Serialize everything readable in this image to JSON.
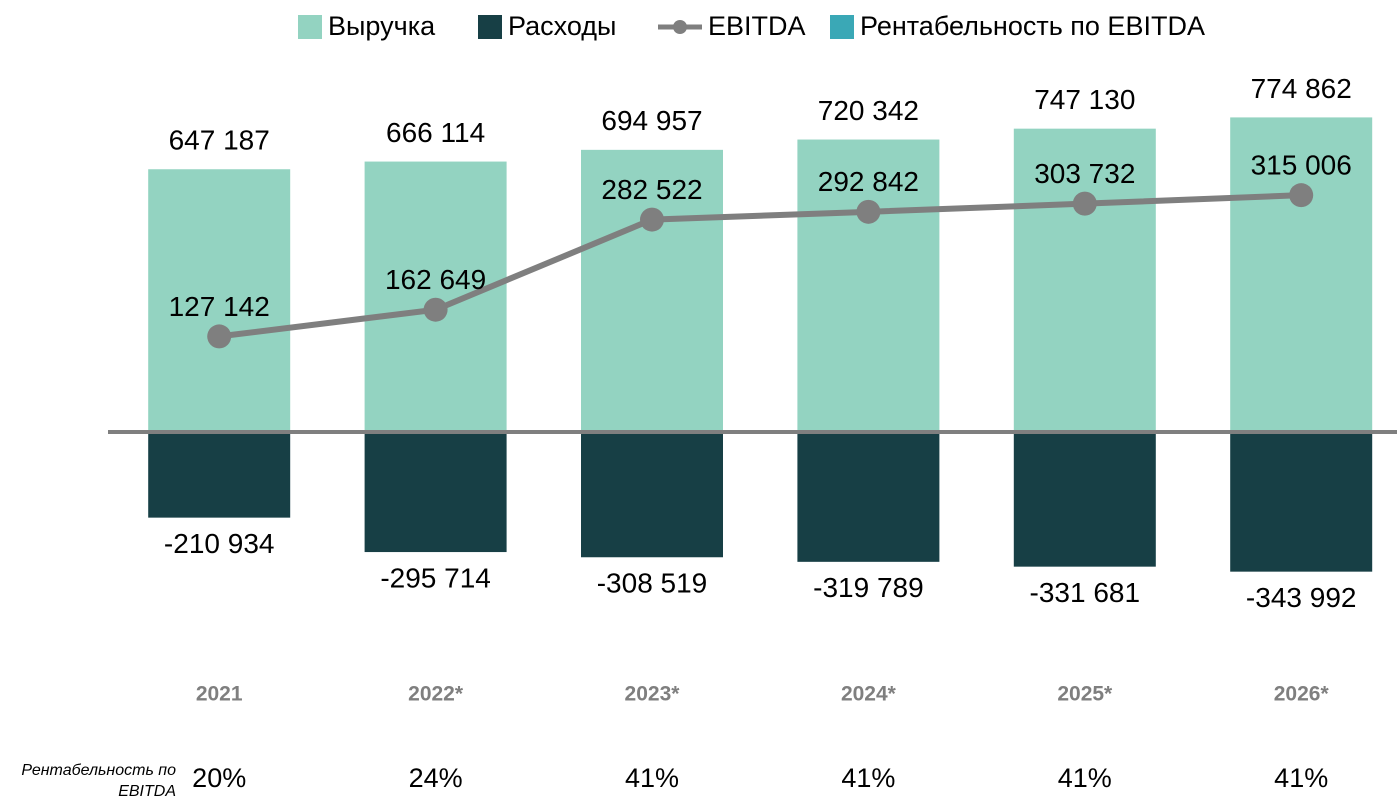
{
  "chart_data": {
    "type": "bar",
    "categories": [
      "2021",
      "2022*",
      "2023*",
      "2024*",
      "2025*",
      "2026*"
    ],
    "series": [
      {
        "name": "Выручка",
        "color": "#93d3c1",
        "values": [
          647187,
          666114,
          694957,
          720342,
          747130,
          774862
        ],
        "value_labels": [
          "647 187",
          "666 114",
          "694 957",
          "720 342",
          "747 130",
          "774 862"
        ]
      },
      {
        "name": "Расходы",
        "color": "#173f45",
        "values": [
          -210934,
          -295714,
          -308519,
          -319789,
          -331681,
          -343992
        ],
        "value_labels": [
          "-210 934",
          "-295 714",
          "-308 519",
          "-319 789",
          "-331 681",
          "-343 992"
        ]
      },
      {
        "name": "EBITDA",
        "color": "#7f7f7f",
        "type": "line",
        "axis": "y2",
        "values": [
          127142,
          162649,
          282522,
          292842,
          303732,
          315006
        ],
        "value_labels": [
          "127 142",
          "162 649",
          "282 522",
          "292 842",
          "303 732",
          "315 006"
        ]
      },
      {
        "name": "Рентабельность по EBITDA",
        "color": "#3aa8b6",
        "type": "table-row",
        "values": [
          20,
          24,
          41,
          41,
          41,
          41
        ],
        "value_labels": [
          "20%",
          "24%",
          "41%",
          "41%",
          "41%",
          "41%"
        ]
      }
    ],
    "ylim": [
      -500000,
      1000000
    ],
    "y2lim": [
      -270000,
      540000
    ]
  }
}
